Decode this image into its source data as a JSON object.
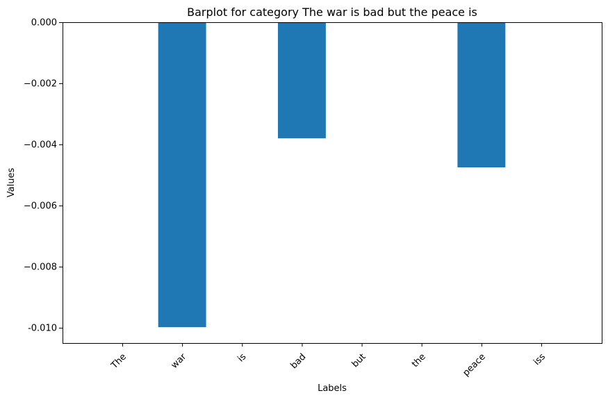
{
  "chart_data": {
    "type": "bar",
    "title": "Barplot for category The war is bad but the peace is",
    "xlabel": "Labels",
    "ylabel": "Values",
    "categories": [
      "The",
      "war",
      "is",
      "bad",
      "but",
      "the",
      "peace",
      "iss"
    ],
    "values": [
      0,
      -0.00998,
      0,
      -0.0038,
      0,
      0,
      -0.00475,
      0
    ],
    "ylim": [
      -0.0105,
      0.0
    ],
    "yticks": [
      0.0,
      -0.002,
      -0.004,
      -0.006,
      -0.008,
      -0.01
    ],
    "ytick_labels": [
      "0.000",
      "−0.002",
      "−0.004",
      "−0.006",
      "−0.008",
      "-0.010"
    ],
    "grid": false,
    "bar_color": "#1f77b4"
  }
}
